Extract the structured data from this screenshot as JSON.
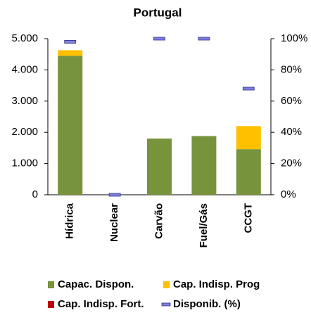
{
  "chart_data": {
    "type": "bar",
    "stacked": true,
    "title": "Portugal",
    "categories": [
      "Hídrica",
      "Nuclear",
      "Carvão",
      "Fuel/Gás",
      "CCGT"
    ],
    "series": [
      {
        "name": "Capac. Dispon.",
        "color": "#77933c",
        "values": [
          4450,
          0,
          1800,
          1880,
          1460
        ]
      },
      {
        "name": "Cap. Indisp. Prog",
        "color": "#ffc000",
        "values": [
          180,
          0,
          0,
          0,
          740
        ]
      },
      {
        "name": "Cap. Indisp. Fort.",
        "color": "#c00000",
        "values": [
          0,
          0,
          0,
          0,
          0
        ]
      },
      {
        "name": "Disponib. (%)",
        "color": "#7f7fe0",
        "type": "marker",
        "axis": "y2",
        "values": [
          98,
          0,
          100,
          100,
          68
        ]
      }
    ],
    "ylim": [
      0,
      5000
    ],
    "yticks": [
      0,
      {
        "value": 1000,
        "label": "1.000"
      },
      {
        "value": 2000,
        "label": "2.000"
      },
      {
        "value": 3000,
        "label": "3.000"
      },
      {
        "value": 4000,
        "label": "4.000"
      },
      {
        "value": 5000,
        "label": "5.000"
      }
    ],
    "y2lim": [
      0,
      100
    ],
    "y2ticks": [
      {
        "value": 0,
        "label": "0%"
      },
      {
        "value": 20,
        "label": "20%"
      },
      {
        "value": 40,
        "label": "40%"
      },
      {
        "value": 60,
        "label": "60%"
      },
      {
        "value": 80,
        "label": "80%"
      },
      {
        "value": 100,
        "label": "100%"
      }
    ],
    "grid": false,
    "legend": "bottom"
  }
}
